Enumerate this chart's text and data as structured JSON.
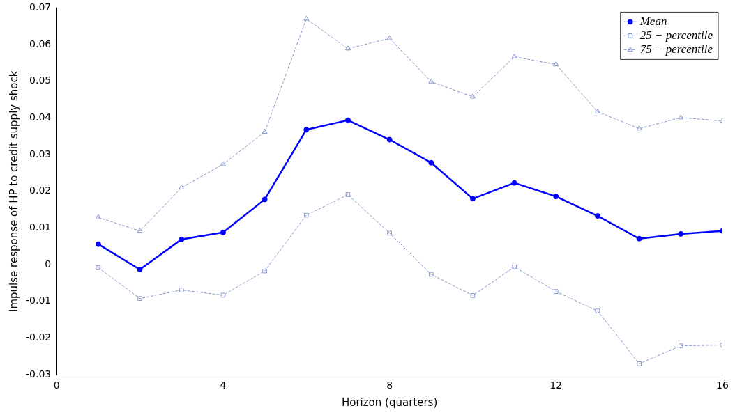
{
  "chart_data": {
    "type": "line",
    "xlabel": "Horizon (quarters)",
    "ylabel": "Impulse response of HP to credit supply shock",
    "x": [
      1,
      2,
      3,
      4,
      5,
      6,
      7,
      8,
      9,
      10,
      11,
      12,
      13,
      14,
      15,
      16
    ],
    "xlim": [
      0,
      16
    ],
    "xticks": [
      0,
      4,
      8,
      12,
      16
    ],
    "ylim": [
      -0.03,
      0.07
    ],
    "yticks": [
      -0.03,
      -0.02,
      -0.01,
      0,
      0.01,
      0.02,
      0.03,
      0.04,
      0.05,
      0.06,
      0.07
    ],
    "grid": false,
    "legend": "top right",
    "series": [
      {
        "name": "Mean",
        "color": "#0000ff",
        "marker": "circle",
        "line_style": "solid",
        "values": [
          0.0056,
          -0.0013,
          0.0069,
          0.0088,
          0.0178,
          0.0368,
          0.0394,
          0.0341,
          0.0278,
          0.018,
          0.0223,
          0.0186,
          0.0133,
          0.0071,
          0.0084,
          0.0092
        ]
      },
      {
        "name": "25 − percentile",
        "color": "#8797cc",
        "marker": "square",
        "line_style": "dashed",
        "values": [
          -0.0008,
          -0.0092,
          -0.0069,
          -0.0083,
          -0.0017,
          0.0135,
          0.0191,
          0.0086,
          -0.0026,
          -0.0084,
          -0.0006,
          -0.0073,
          -0.0126,
          -0.027,
          -0.0221,
          -0.0219
        ]
      },
      {
        "name": "75 − percentile",
        "color": "#8797cc",
        "marker": "triangle",
        "line_style": "dashed",
        "values": [
          0.0129,
          0.0092,
          0.021,
          0.0274,
          0.0362,
          0.067,
          0.0589,
          0.0617,
          0.0499,
          0.0458,
          0.0567,
          0.0546,
          0.0417,
          0.0371,
          0.0401,
          0.0392
        ]
      }
    ]
  }
}
